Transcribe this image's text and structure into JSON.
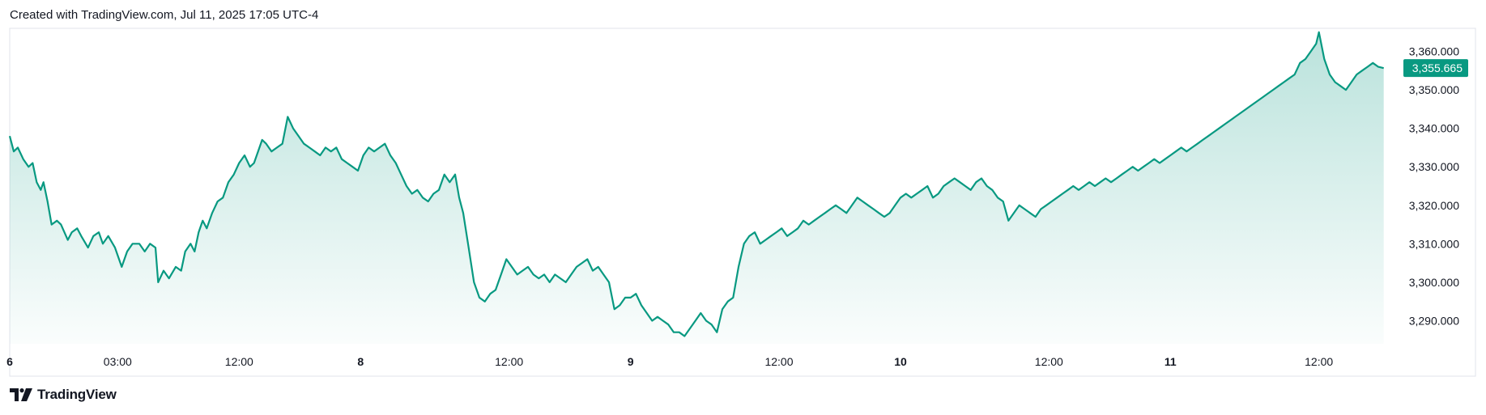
{
  "header": {
    "text": "Created with TradingView.com, Jul 11, 2025 17:05 UTC-4"
  },
  "footer": {
    "brand": "TradingView",
    "logo_icon": "tradingview-logo-icon"
  },
  "colors": {
    "line": "#089981",
    "fill_top": "#089981",
    "label_bg": "#089981",
    "border": "#e0e3eb"
  },
  "chart_data": {
    "type": "area",
    "title": "",
    "xlabel": "",
    "ylabel": "",
    "last_price_label": "3,355.665",
    "ylim": [
      3284,
      3366
    ],
    "y_ticks": [
      {
        "value": 3360,
        "label": "3,360.000"
      },
      {
        "value": 3350,
        "label": "3,350.000"
      },
      {
        "value": 3340,
        "label": "3,340.000"
      },
      {
        "value": 3330,
        "label": "3,330.000"
      },
      {
        "value": 3320,
        "label": "3,320.000"
      },
      {
        "value": 3310,
        "label": "3,310.000"
      },
      {
        "value": 3300,
        "label": "3,300.000"
      },
      {
        "value": 3290,
        "label": "3,290.000"
      }
    ],
    "xlim": [
      0,
      102
    ],
    "x_ticks": [
      {
        "t": 0,
        "label": "6",
        "bold": true
      },
      {
        "t": 8,
        "label": "03:00",
        "bold": false
      },
      {
        "t": 17,
        "label": "12:00",
        "bold": false
      },
      {
        "t": 26,
        "label": "8",
        "bold": true
      },
      {
        "t": 37,
        "label": "12:00",
        "bold": false
      },
      {
        "t": 46,
        "label": "9",
        "bold": true
      },
      {
        "t": 57,
        "label": "12:00",
        "bold": false
      },
      {
        "t": 66,
        "label": "10",
        "bold": true
      },
      {
        "t": 77,
        "label": "12:00",
        "bold": false
      },
      {
        "t": 86,
        "label": "11",
        "bold": true
      },
      {
        "t": 97,
        "label": "12:00",
        "bold": false
      }
    ],
    "x_unit": "hours since first tick label 6",
    "series": [
      {
        "values": [
          [
            0,
            3338
          ],
          [
            0.3,
            3334
          ],
          [
            0.6,
            3335
          ],
          [
            1,
            3332
          ],
          [
            1.4,
            3330
          ],
          [
            1.7,
            3331
          ],
          [
            2,
            3326
          ],
          [
            2.3,
            3324
          ],
          [
            2.5,
            3326
          ],
          [
            2.8,
            3321
          ],
          [
            3.1,
            3315
          ],
          [
            3.5,
            3316
          ],
          [
            3.8,
            3315
          ],
          [
            4.3,
            3311
          ],
          [
            4.6,
            3313
          ],
          [
            5,
            3314
          ],
          [
            5.3,
            3312
          ],
          [
            5.8,
            3309
          ],
          [
            6.2,
            3312
          ],
          [
            6.6,
            3313
          ],
          [
            6.9,
            3310
          ],
          [
            7.3,
            3312
          ],
          [
            7.8,
            3309
          ],
          [
            8.3,
            3304
          ],
          [
            8.7,
            3308
          ],
          [
            9.1,
            3310
          ],
          [
            9.6,
            3310
          ],
          [
            10,
            3308
          ],
          [
            10.4,
            3310
          ],
          [
            10.8,
            3309
          ],
          [
            11,
            3300
          ],
          [
            11.4,
            3303
          ],
          [
            11.8,
            3301
          ],
          [
            12.3,
            3304
          ],
          [
            12.7,
            3303
          ],
          [
            13,
            3308
          ],
          [
            13.4,
            3310
          ],
          [
            13.7,
            3308
          ],
          [
            14,
            3313
          ],
          [
            14.3,
            3316
          ],
          [
            14.6,
            3314
          ],
          [
            15,
            3318
          ],
          [
            15.4,
            3321
          ],
          [
            15.8,
            3322
          ],
          [
            16.2,
            3326
          ],
          [
            16.6,
            3328
          ],
          [
            17,
            3331
          ],
          [
            17.4,
            3333
          ],
          [
            17.8,
            3330
          ],
          [
            18.1,
            3331
          ],
          [
            18.4,
            3334
          ],
          [
            18.7,
            3337
          ],
          [
            19,
            3336
          ],
          [
            19.4,
            3334
          ],
          [
            19.8,
            3335
          ],
          [
            20.2,
            3336
          ],
          [
            20.6,
            3343
          ],
          [
            21,
            3340
          ],
          [
            21.4,
            3338
          ],
          [
            21.8,
            3336
          ],
          [
            22.2,
            3335
          ],
          [
            22.6,
            3334
          ],
          [
            23,
            3333
          ],
          [
            23.4,
            3335
          ],
          [
            23.8,
            3334
          ],
          [
            24.2,
            3335
          ],
          [
            24.6,
            3332
          ],
          [
            25,
            3331
          ],
          [
            25.4,
            3330
          ],
          [
            25.8,
            3329
          ],
          [
            26.2,
            3333
          ],
          [
            26.6,
            3335
          ],
          [
            27,
            3334
          ],
          [
            27.4,
            3335
          ],
          [
            27.8,
            3336
          ],
          [
            28.2,
            3333
          ],
          [
            28.6,
            3331
          ],
          [
            29,
            3328
          ],
          [
            29.4,
            3325
          ],
          [
            29.8,
            3323
          ],
          [
            30.2,
            3324
          ],
          [
            30.6,
            3322
          ],
          [
            31,
            3321
          ],
          [
            31.4,
            3323
          ],
          [
            31.8,
            3324
          ],
          [
            32.2,
            3328
          ],
          [
            32.6,
            3326
          ],
          [
            33,
            3328
          ],
          [
            33.3,
            3322
          ],
          [
            33.6,
            3318
          ],
          [
            34,
            3309
          ],
          [
            34.4,
            3300
          ],
          [
            34.8,
            3296
          ],
          [
            35.2,
            3295
          ],
          [
            35.6,
            3297
          ],
          [
            36,
            3298
          ],
          [
            36.4,
            3302
          ],
          [
            36.8,
            3306
          ],
          [
            37.2,
            3304
          ],
          [
            37.6,
            3302
          ],
          [
            38,
            3303
          ],
          [
            38.4,
            3304
          ],
          [
            38.8,
            3302
          ],
          [
            39.2,
            3301
          ],
          [
            39.6,
            3302
          ],
          [
            40,
            3300
          ],
          [
            40.4,
            3302
          ],
          [
            40.8,
            3301
          ],
          [
            41.2,
            3300
          ],
          [
            41.6,
            3302
          ],
          [
            42,
            3304
          ],
          [
            42.4,
            3305
          ],
          [
            42.8,
            3306
          ],
          [
            43.2,
            3303
          ],
          [
            43.6,
            3304
          ],
          [
            44,
            3302
          ],
          [
            44.4,
            3300
          ],
          [
            44.8,
            3293
          ],
          [
            45.2,
            3294
          ],
          [
            45.6,
            3296
          ],
          [
            46,
            3296
          ],
          [
            46.4,
            3297
          ],
          [
            46.8,
            3294
          ],
          [
            47.2,
            3292
          ],
          [
            47.6,
            3290
          ],
          [
            48,
            3291
          ],
          [
            48.4,
            3290
          ],
          [
            48.8,
            3289
          ],
          [
            49.2,
            3287
          ],
          [
            49.6,
            3287
          ],
          [
            50,
            3286
          ],
          [
            50.4,
            3288
          ],
          [
            50.8,
            3290
          ],
          [
            51.2,
            3292
          ],
          [
            51.6,
            3290
          ],
          [
            52,
            3289
          ],
          [
            52.4,
            3287
          ],
          [
            52.8,
            3293
          ],
          [
            53.2,
            3295
          ],
          [
            53.6,
            3296
          ],
          [
            54,
            3304
          ],
          [
            54.4,
            3310
          ],
          [
            54.8,
            3312
          ],
          [
            55.2,
            3313
          ],
          [
            55.6,
            3310
          ],
          [
            56,
            3311
          ],
          [
            56.4,
            3312
          ],
          [
            56.8,
            3313
          ],
          [
            57.2,
            3314
          ],
          [
            57.6,
            3312
          ],
          [
            58,
            3313
          ],
          [
            58.4,
            3314
          ],
          [
            58.8,
            3316
          ],
          [
            59.2,
            3315
          ],
          [
            59.6,
            3316
          ],
          [
            60,
            3317
          ],
          [
            60.4,
            3318
          ],
          [
            60.8,
            3319
          ],
          [
            61.2,
            3320
          ],
          [
            61.6,
            3319
          ],
          [
            62,
            3318
          ],
          [
            62.4,
            3320
          ],
          [
            62.8,
            3322
          ],
          [
            63.2,
            3321
          ],
          [
            63.6,
            3320
          ],
          [
            64,
            3319
          ],
          [
            64.4,
            3318
          ],
          [
            64.8,
            3317
          ],
          [
            65.2,
            3318
          ],
          [
            65.6,
            3320
          ],
          [
            66,
            3322
          ],
          [
            66.4,
            3323
          ],
          [
            66.8,
            3322
          ],
          [
            67.2,
            3323
          ],
          [
            67.6,
            3324
          ],
          [
            68,
            3325
          ],
          [
            68.4,
            3322
          ],
          [
            68.8,
            3323
          ],
          [
            69.2,
            3325
          ],
          [
            69.6,
            3326
          ],
          [
            70,
            3327
          ],
          [
            70.4,
            3326
          ],
          [
            70.8,
            3325
          ],
          [
            71.2,
            3324
          ],
          [
            71.6,
            3326
          ],
          [
            72,
            3327
          ],
          [
            72.4,
            3325
          ],
          [
            72.8,
            3324
          ],
          [
            73.2,
            3322
          ],
          [
            73.6,
            3321
          ],
          [
            74,
            3316
          ],
          [
            74.4,
            3318
          ],
          [
            74.8,
            3320
          ],
          [
            75.2,
            3319
          ],
          [
            75.6,
            3318
          ],
          [
            76,
            3317
          ],
          [
            76.4,
            3319
          ],
          [
            76.8,
            3320
          ],
          [
            77.2,
            3321
          ],
          [
            77.6,
            3322
          ],
          [
            78,
            3323
          ],
          [
            78.4,
            3324
          ],
          [
            78.8,
            3325
          ],
          [
            79.2,
            3324
          ],
          [
            79.6,
            3325
          ],
          [
            80,
            3326
          ],
          [
            80.4,
            3325
          ],
          [
            80.8,
            3326
          ],
          [
            81.2,
            3327
          ],
          [
            81.6,
            3326
          ],
          [
            82,
            3327
          ],
          [
            82.4,
            3328
          ],
          [
            82.8,
            3329
          ],
          [
            83.2,
            3330
          ],
          [
            83.6,
            3329
          ],
          [
            84,
            3330
          ],
          [
            84.4,
            3331
          ],
          [
            84.8,
            3332
          ],
          [
            85.2,
            3331
          ],
          [
            85.6,
            3332
          ],
          [
            86,
            3333
          ],
          [
            86.4,
            3334
          ],
          [
            86.8,
            3335
          ],
          [
            87.2,
            3334
          ],
          [
            87.6,
            3335
          ],
          [
            88,
            3336
          ],
          [
            88.4,
            3337
          ],
          [
            88.8,
            3338
          ],
          [
            89.2,
            3339
          ],
          [
            89.6,
            3340
          ],
          [
            90,
            3341
          ],
          [
            90.4,
            3342
          ],
          [
            90.8,
            3343
          ],
          [
            91.2,
            3344
          ],
          [
            91.6,
            3345
          ],
          [
            92,
            3346
          ],
          [
            92.4,
            3347
          ],
          [
            92.8,
            3348
          ],
          [
            93.2,
            3349
          ],
          [
            93.6,
            3350
          ],
          [
            94,
            3351
          ],
          [
            94.4,
            3352
          ],
          [
            94.8,
            3353
          ],
          [
            95.2,
            3354
          ],
          [
            95.6,
            3357
          ],
          [
            96,
            3358
          ],
          [
            96.4,
            3360
          ],
          [
            96.8,
            3362
          ],
          [
            97,
            3365
          ],
          [
            97.4,
            3358
          ],
          [
            97.8,
            3354
          ],
          [
            98.2,
            3352
          ],
          [
            98.6,
            3351
          ],
          [
            99,
            3350
          ],
          [
            99.4,
            3352
          ],
          [
            99.8,
            3354
          ],
          [
            100.2,
            3355
          ],
          [
            100.6,
            3356
          ],
          [
            101,
            3357
          ],
          [
            101.4,
            3356
          ],
          [
            101.8,
            3355.665
          ]
        ]
      }
    ]
  }
}
